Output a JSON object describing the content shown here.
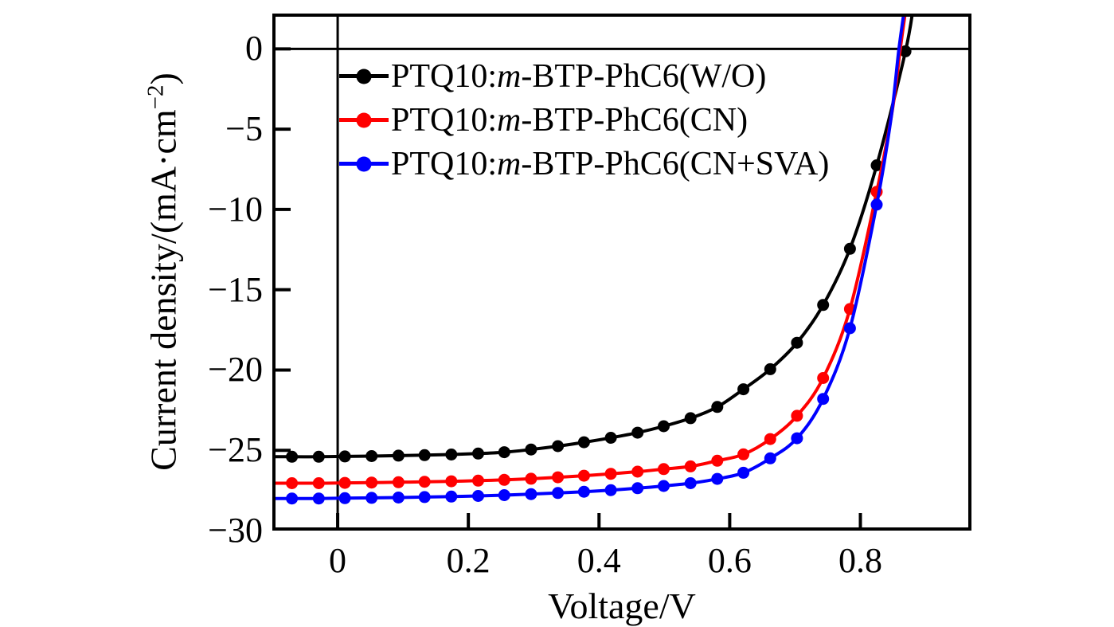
{
  "figure": {
    "background": "#ffffff",
    "axis_color": "#000000"
  },
  "chart_data": {
    "type": "line",
    "title": "",
    "xlabel": "Voltage/V",
    "ylabel": "Current density/(mA·cm−2)",
    "ylabel_parts": {
      "pre": "Current density/(mA·cm",
      "sup": "−2",
      "post": ")"
    },
    "xlim": [
      -0.1,
      0.97
    ],
    "ylim": [
      -30,
      2.2
    ],
    "grid": false,
    "zero_lines": {
      "horizontal_at": 0,
      "vertical_at": 0
    },
    "legend_position": "upper-left-inside",
    "x_ticks": [
      {
        "v": 0.0,
        "label": "0"
      },
      {
        "v": 0.2,
        "label": "0.2"
      },
      {
        "v": 0.4,
        "label": "0.4"
      },
      {
        "v": 0.6,
        "label": "0.6"
      },
      {
        "v": 0.8,
        "label": "0.8"
      }
    ],
    "y_ticks": [
      {
        "v": 0,
        "label": "0"
      },
      {
        "v": -5,
        "label": "−5"
      },
      {
        "v": -10,
        "label": "−10"
      },
      {
        "v": -15,
        "label": "−15"
      },
      {
        "v": -20,
        "label": "−20"
      },
      {
        "v": -25,
        "label": "−25"
      },
      {
        "v": -30,
        "label": "−30"
      }
    ],
    "series": [
      {
        "name": "PTQ10:m-BTP-PhC6(W/O)",
        "label_parts": {
          "pre": "PTQ10:",
          "italic": "m",
          "post": "-BTP-PhC6(W/O)"
        },
        "color": "#000000",
        "marker": "circle",
        "points": [
          [
            -0.07,
            -25.4
          ],
          [
            -0.029,
            -25.4
          ],
          [
            0.011,
            -25.38
          ],
          [
            0.052,
            -25.36
          ],
          [
            0.093,
            -25.33
          ],
          [
            0.133,
            -25.3
          ],
          [
            0.174,
            -25.26
          ],
          [
            0.215,
            -25.2
          ],
          [
            0.255,
            -25.12
          ],
          [
            0.296,
            -24.95
          ],
          [
            0.337,
            -24.74
          ],
          [
            0.377,
            -24.5
          ],
          [
            0.418,
            -24.22
          ],
          [
            0.459,
            -23.9
          ],
          [
            0.499,
            -23.5
          ],
          [
            0.54,
            -23.0
          ],
          [
            0.581,
            -22.3
          ],
          [
            0.621,
            -21.2
          ],
          [
            0.662,
            -19.95
          ],
          [
            0.703,
            -18.3
          ],
          [
            0.743,
            -15.95
          ],
          [
            0.784,
            -12.45
          ],
          [
            0.825,
            -7.25
          ],
          [
            0.869,
            -0.15
          ]
        ],
        "line_ext": [
          [
            0.883,
            3.2
          ]
        ]
      },
      {
        "name": "PTQ10:m-BTP-PhC6(CN)",
        "label_parts": {
          "pre": "PTQ10:",
          "italic": "m",
          "post": "-BTP-PhC6(CN)"
        },
        "color": "#ff0000",
        "marker": "circle",
        "points": [
          [
            -0.07,
            -27.05
          ],
          [
            -0.029,
            -27.05
          ],
          [
            0.011,
            -27.03
          ],
          [
            0.052,
            -27.01
          ],
          [
            0.093,
            -26.99
          ],
          [
            0.133,
            -26.96
          ],
          [
            0.174,
            -26.93
          ],
          [
            0.215,
            -26.89
          ],
          [
            0.255,
            -26.84
          ],
          [
            0.296,
            -26.77
          ],
          [
            0.337,
            -26.68
          ],
          [
            0.377,
            -26.58
          ],
          [
            0.418,
            -26.46
          ],
          [
            0.459,
            -26.33
          ],
          [
            0.499,
            -26.17
          ],
          [
            0.54,
            -26.0
          ],
          [
            0.581,
            -25.65
          ],
          [
            0.621,
            -25.25
          ],
          [
            0.662,
            -24.3
          ],
          [
            0.703,
            -22.85
          ],
          [
            0.743,
            -20.5
          ],
          [
            0.784,
            -16.2
          ],
          [
            0.825,
            -8.9
          ]
        ],
        "line_ext": [
          [
            0.849,
            -3.8
          ],
          [
            0.861,
            0.0
          ],
          [
            0.872,
            3.2
          ]
        ]
      },
      {
        "name": "PTQ10:m-BTP-PhC6(CN+SVA)",
        "label_parts": {
          "pre": "PTQ10:",
          "italic": "m",
          "post": "-BTP-PhC6(CN+SVA)"
        },
        "color": "#0000ff",
        "marker": "circle",
        "points": [
          [
            -0.07,
            -28.0
          ],
          [
            -0.029,
            -28.0
          ],
          [
            0.011,
            -27.98
          ],
          [
            0.052,
            -27.96
          ],
          [
            0.093,
            -27.94
          ],
          [
            0.133,
            -27.91
          ],
          [
            0.174,
            -27.88
          ],
          [
            0.215,
            -27.84
          ],
          [
            0.255,
            -27.79
          ],
          [
            0.296,
            -27.73
          ],
          [
            0.337,
            -27.66
          ],
          [
            0.377,
            -27.58
          ],
          [
            0.418,
            -27.48
          ],
          [
            0.459,
            -27.36
          ],
          [
            0.499,
            -27.22
          ],
          [
            0.54,
            -27.05
          ],
          [
            0.581,
            -26.78
          ],
          [
            0.621,
            -26.4
          ],
          [
            0.662,
            -25.5
          ],
          [
            0.703,
            -24.25
          ],
          [
            0.743,
            -21.8
          ],
          [
            0.784,
            -17.4
          ],
          [
            0.825,
            -9.7
          ]
        ],
        "line_ext": [
          [
            0.847,
            -4.3
          ],
          [
            0.859,
            0.0
          ],
          [
            0.87,
            3.2
          ]
        ]
      }
    ]
  }
}
